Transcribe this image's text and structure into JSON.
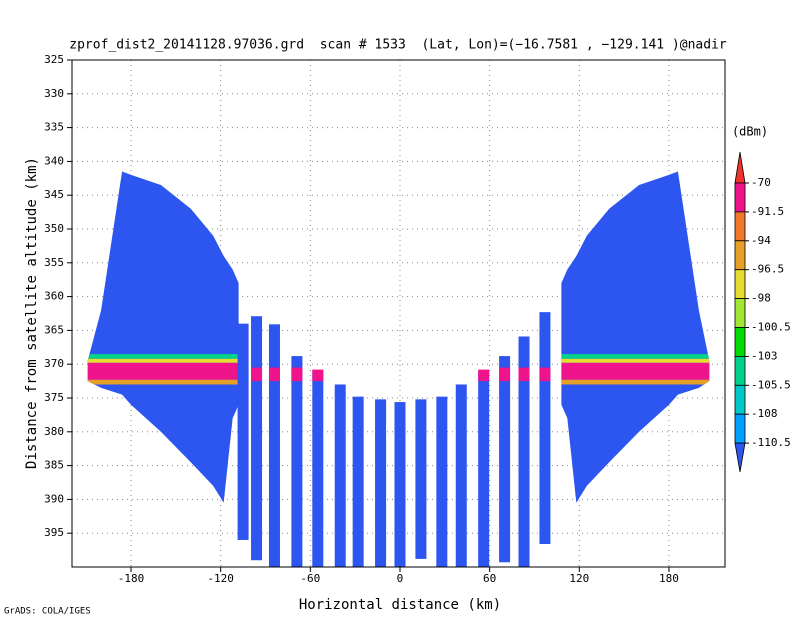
{
  "chart_data": {
    "type": "profile",
    "title": "zprof_dist2_20141128.97036.grd  scan # 1533  (Lat, Lon)=(−16.7581 , −129.141 )@nadir",
    "x_label": "Horizontal distance (km)",
    "y_label": "Distance from satellite altitude (km)",
    "credit": "GrADS: COLA/IGES",
    "xlim": [
      -219.5,
      217.5
    ],
    "xticks": [
      -180,
      -120,
      -60,
      0,
      60,
      120,
      180
    ],
    "ylim": [
      325,
      400
    ],
    "y_reversed": true,
    "yticks": [
      325,
      330,
      335,
      340,
      345,
      350,
      355,
      360,
      365,
      370,
      375,
      380,
      385,
      390,
      395
    ],
    "grid": true,
    "field_value": -112,
    "colorbar": {
      "unit": "(dBm)",
      "levels": [
        -70,
        -91.5,
        -94,
        -96.5,
        -98,
        -100.5,
        -103,
        -105.5,
        -108,
        -110.5
      ],
      "colors": [
        "#f0322d",
        "#f0148c",
        "#f07828",
        "#e6a028",
        "#e6dc32",
        "#a0e632",
        "#00dc00",
        "#00d28c",
        "#00c8c8",
        "#00a0ff",
        "#2d55f0"
      ]
    },
    "swaths": [
      {
        "x": [
          -209,
          -200,
          -186,
          -180,
          -160,
          -140,
          -125,
          -118,
          -112,
          -108
        ],
        "top": [
          369.5,
          362,
          341.5,
          342,
          343.5,
          347,
          351,
          354,
          356,
          358
        ],
        "bottom": [
          372.5,
          373.5,
          374.5,
          376,
          380,
          384.5,
          388,
          390.5,
          378,
          376
        ]
      },
      {
        "x": [
          108,
          112,
          118,
          125,
          140,
          160,
          180,
          186,
          200,
          207
        ],
        "top": [
          358,
          356,
          354,
          351,
          347,
          343.5,
          342,
          341.5,
          362,
          369.5
        ],
        "bottom": [
          376,
          378,
          390.5,
          388,
          384.5,
          380,
          376,
          374.5,
          373.5,
          372.5
        ]
      }
    ],
    "echo_layers": [
      {
        "value": -104,
        "top": 368.5,
        "bottom": 369.2
      },
      {
        "value": -97,
        "top": 369.2,
        "bottom": 369.8
      },
      {
        "value": -85,
        "top": 369.8,
        "bottom": 372.3
      },
      {
        "value": -95,
        "top": 372.3,
        "bottom": 373
      }
    ],
    "beams": [
      {
        "x": -105,
        "top": 364,
        "bottom": 396
      },
      {
        "x": -96,
        "top": 362.9,
        "bottom": 399
      },
      {
        "x": -84,
        "top": 364.1,
        "bottom": 400
      },
      {
        "x": -69,
        "top": 368.8,
        "bottom": 400
      },
      {
        "x": -55,
        "top": 371,
        "bottom": 400
      },
      {
        "x": -40,
        "top": 373,
        "bottom": 400
      },
      {
        "x": -28,
        "top": 374.8,
        "bottom": 400
      },
      {
        "x": -13,
        "top": 375.2,
        "bottom": 400
      },
      {
        "x": 0,
        "top": 375.6,
        "bottom": 400
      },
      {
        "x": 14,
        "top": 375.2,
        "bottom": 398.8
      },
      {
        "x": 28,
        "top": 374.8,
        "bottom": 400
      },
      {
        "x": 41,
        "top": 373,
        "bottom": 400
      },
      {
        "x": 56,
        "top": 371,
        "bottom": 400
      },
      {
        "x": 70,
        "top": 368.8,
        "bottom": 399.3
      },
      {
        "x": 83,
        "top": 365.9,
        "bottom": 400
      },
      {
        "x": 97,
        "top": 362.3,
        "bottom": 396.6
      }
    ],
    "beam_echoes": [
      {
        "x": -96,
        "top": 370.5,
        "bottom": 372.5,
        "value": -85
      },
      {
        "x": -84,
        "top": 370.5,
        "bottom": 372.5,
        "value": -85
      },
      {
        "x": -69,
        "top": 370.5,
        "bottom": 372.5,
        "value": -85
      },
      {
        "x": -55,
        "top": 370.8,
        "bottom": 372.5,
        "value": -85
      },
      {
        "x": 56,
        "top": 370.8,
        "bottom": 372.5,
        "value": -85
      },
      {
        "x": 70,
        "top": 370.5,
        "bottom": 372.5,
        "value": -85
      },
      {
        "x": 83,
        "top": 370.5,
        "bottom": 372.5,
        "value": -85
      },
      {
        "x": 97,
        "top": 370.5,
        "bottom": 372.5,
        "value": -85
      }
    ]
  }
}
